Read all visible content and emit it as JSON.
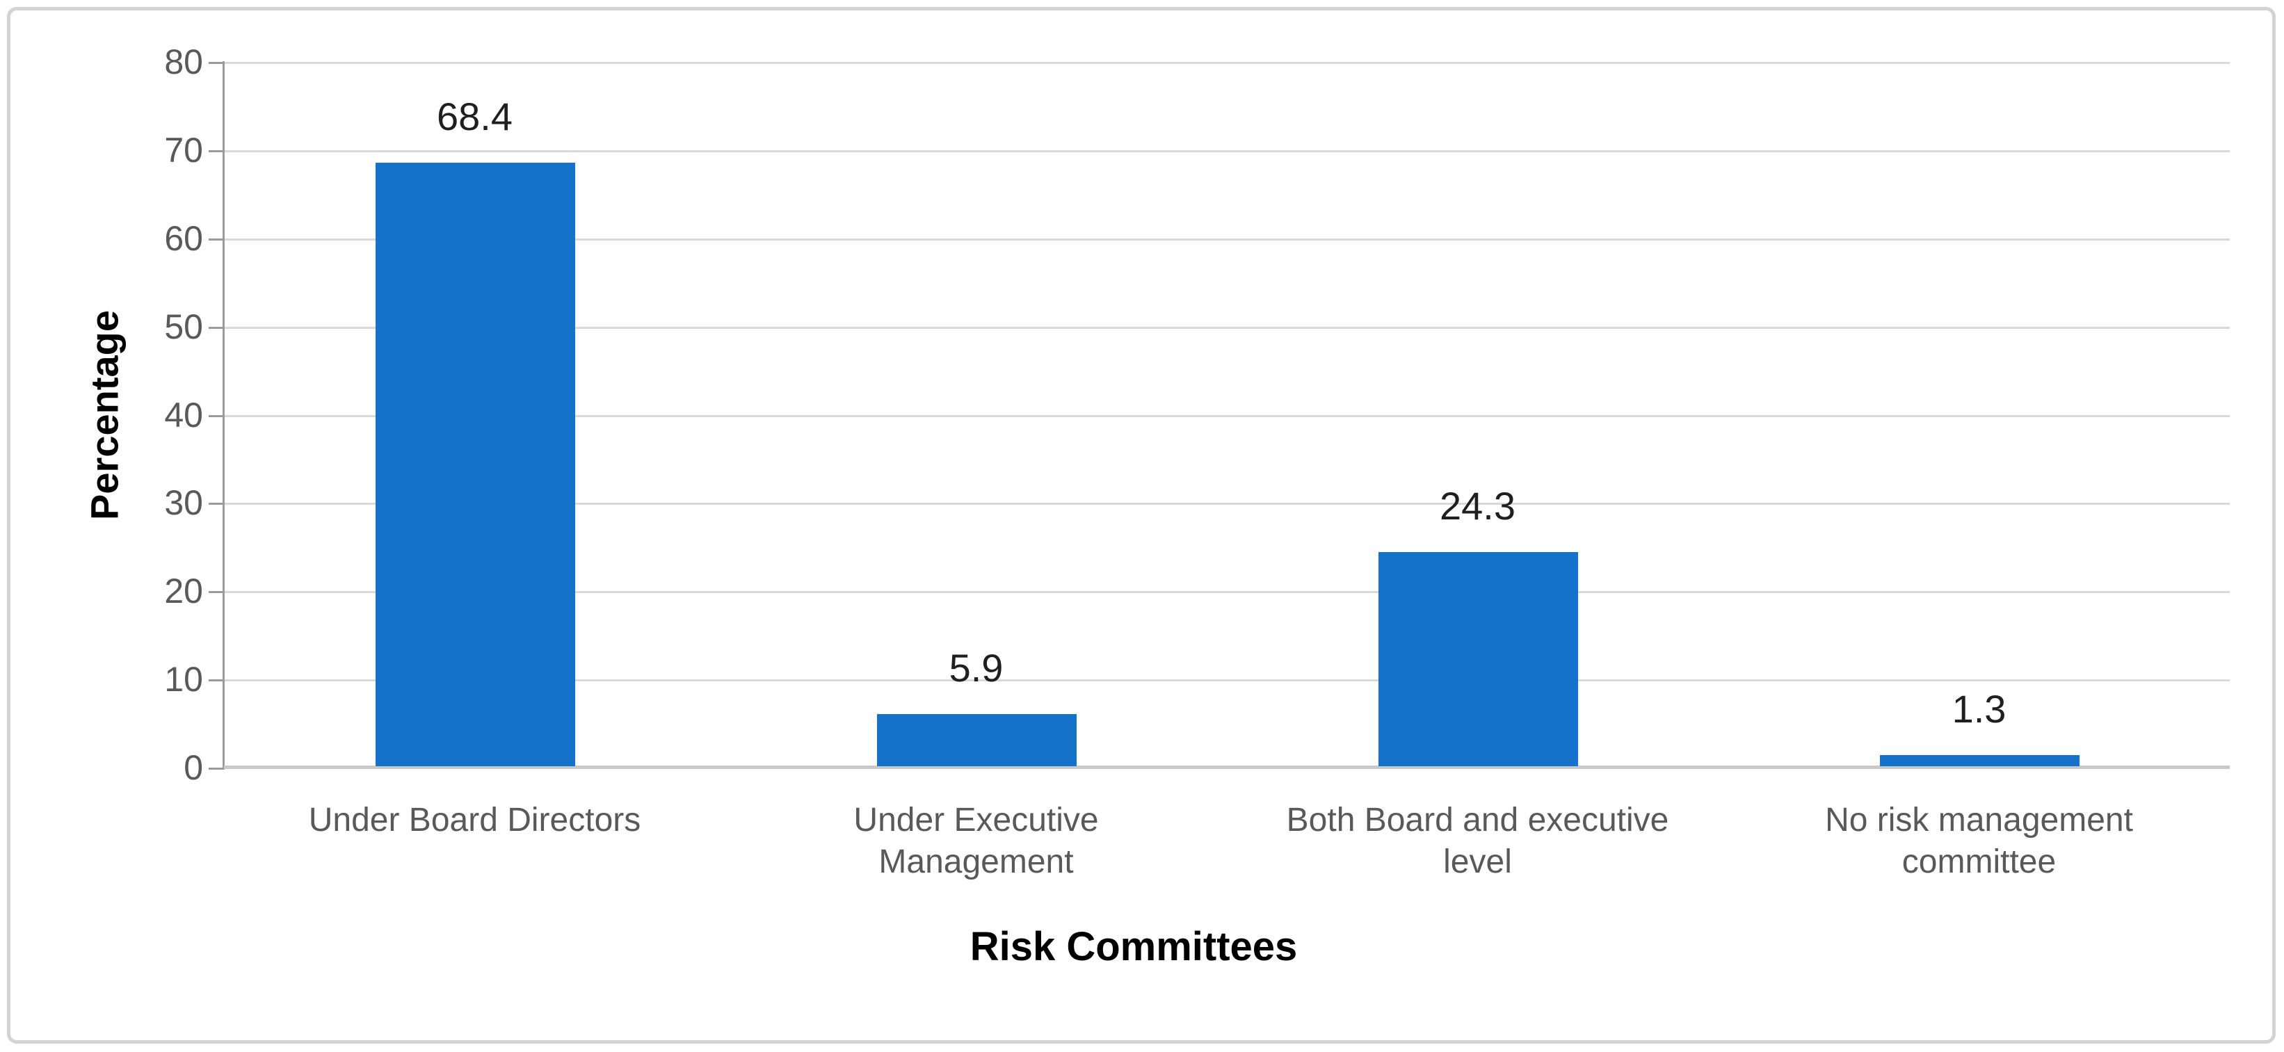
{
  "chart_data": {
    "type": "bar",
    "title": "",
    "categories": [
      "Under Board Directors",
      "Under Executive Management",
      "Both Board and executive level",
      "No risk management committee"
    ],
    "categories_wrapped": [
      [
        "Under Board Directors"
      ],
      [
        "Under Executive",
        "Management"
      ],
      [
        "Both Board and executive",
        "level"
      ],
      [
        "No risk management",
        "committee"
      ]
    ],
    "values": [
      68.4,
      5.9,
      24.3,
      1.3
    ],
    "data_labels": [
      "68.4",
      "5.9",
      "24.3",
      "1.3"
    ],
    "xlabel": "Risk Committees",
    "ylabel": "Percentage",
    "ylim": [
      0,
      80
    ],
    "ytick_step": 10,
    "yticks": [
      0,
      10,
      20,
      30,
      40,
      50,
      60,
      70,
      80
    ],
    "grid": true,
    "legend": "none",
    "colors": {
      "bar": "#1572CA",
      "gridline": "#D9D9D9",
      "axis_line": "#9B9B9B",
      "baseline": "#C9C9C9",
      "tick_label": "#595959",
      "category_label": "#595959",
      "data_label": "#1F1F1F",
      "axis_title": "#000000",
      "frame_border": "#D3D3D3"
    }
  }
}
